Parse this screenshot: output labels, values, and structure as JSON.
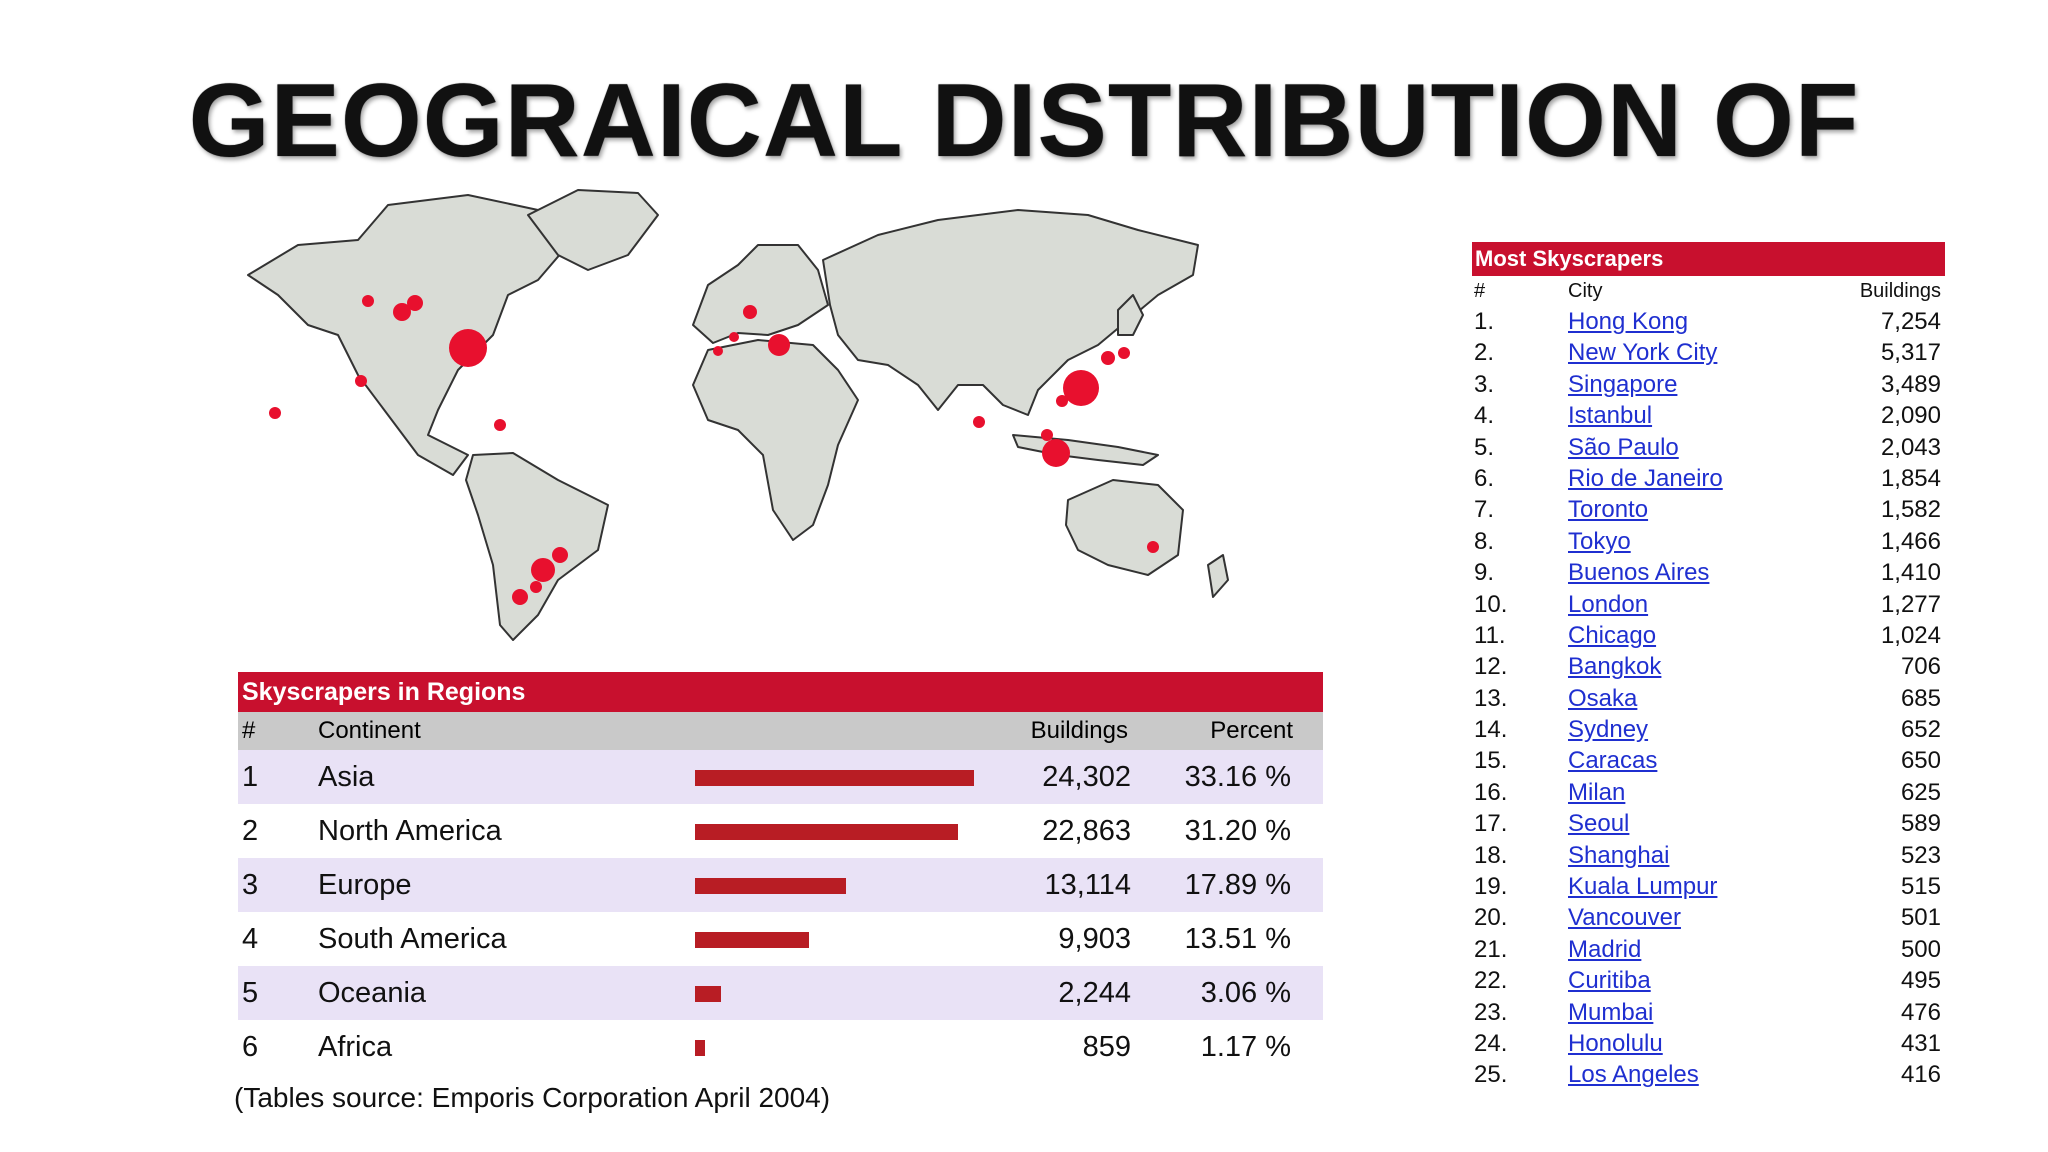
{
  "title": "GEOGRAICAL DISTRIBUTION OF",
  "regions_table": {
    "header": "Skyscrapers in Regions",
    "columns": {
      "num": "#",
      "continent": "Continent",
      "buildings": "Buildings",
      "percent": "Percent"
    },
    "rows": [
      {
        "num": "1",
        "continent": "Asia",
        "buildings": "24,302",
        "percent": "33.16 %",
        "share": 33.16
      },
      {
        "num": "2",
        "continent": "North America",
        "buildings": "22,863",
        "percent": "31.20 %",
        "share": 31.2
      },
      {
        "num": "3",
        "continent": "Europe",
        "buildings": "13,114",
        "percent": "17.89 %",
        "share": 17.89
      },
      {
        "num": "4",
        "continent": "South America",
        "buildings": "9,903",
        "percent": "13.51 %",
        "share": 13.51
      },
      {
        "num": "5",
        "continent": "Oceania",
        "buildings": "2,244",
        "percent": "3.06 %",
        "share": 3.06
      },
      {
        "num": "6",
        "continent": "Africa",
        "buildings": "859",
        "percent": "1.17 %",
        "share": 1.17
      }
    ]
  },
  "source": "(Tables source: Emporis Corporation April 2004)",
  "most_table": {
    "header": "Most Skyscrapers",
    "columns": {
      "num": "#",
      "city": "City",
      "buildings": "Buildings"
    },
    "rows": [
      {
        "num": "1.",
        "city": "Hong Kong",
        "buildings": "7,254"
      },
      {
        "num": "2.",
        "city": "New York City",
        "buildings": "5,317"
      },
      {
        "num": "3.",
        "city": "Singapore",
        "buildings": "3,489"
      },
      {
        "num": "4.",
        "city": "Istanbul",
        "buildings": "2,090"
      },
      {
        "num": "5.",
        "city": "São Paulo",
        "buildings": "2,043"
      },
      {
        "num": "6.",
        "city": "Rio de Janeiro",
        "buildings": "1,854"
      },
      {
        "num": "7.",
        "city": "Toronto",
        "buildings": "1,582"
      },
      {
        "num": "8.",
        "city": "Tokyo",
        "buildings": "1,466"
      },
      {
        "num": "9.",
        "city": "Buenos Aires",
        "buildings": "1,410"
      },
      {
        "num": "10.",
        "city": "London",
        "buildings": "1,277"
      },
      {
        "num": "11.",
        "city": "Chicago",
        "buildings": "1,024"
      },
      {
        "num": "12.",
        "city": "Bangkok",
        "buildings": "706"
      },
      {
        "num": "13.",
        "city": "Osaka",
        "buildings": "685"
      },
      {
        "num": "14.",
        "city": "Sydney",
        "buildings": "652"
      },
      {
        "num": "15.",
        "city": "Caracas",
        "buildings": "650"
      },
      {
        "num": "16.",
        "city": "Milan",
        "buildings": "625"
      },
      {
        "num": "17.",
        "city": "Seoul",
        "buildings": "589"
      },
      {
        "num": "18.",
        "city": "Shanghai",
        "buildings": "523"
      },
      {
        "num": "19.",
        "city": "Kuala Lumpur",
        "buildings": "515"
      },
      {
        "num": "20.",
        "city": "Vancouver",
        "buildings": "501"
      },
      {
        "num": "21.",
        "city": "Madrid",
        "buildings": "500"
      },
      {
        "num": "22.",
        "city": "Curitiba",
        "buildings": "495"
      },
      {
        "num": "23.",
        "city": "Mumbai",
        "buildings": "476"
      },
      {
        "num": "24.",
        "city": "Honolulu",
        "buildings": "431"
      },
      {
        "num": "25.",
        "city": "Los Angeles",
        "buildings": "416"
      }
    ]
  },
  "colors": {
    "header_red": "#c8102e",
    "bar_red": "#b81d24",
    "row_lavender": "#e9e2f6",
    "link_blue": "#1f2fd0",
    "land_gray": "#d9dcd6",
    "marker_red": "#e8102e"
  }
}
